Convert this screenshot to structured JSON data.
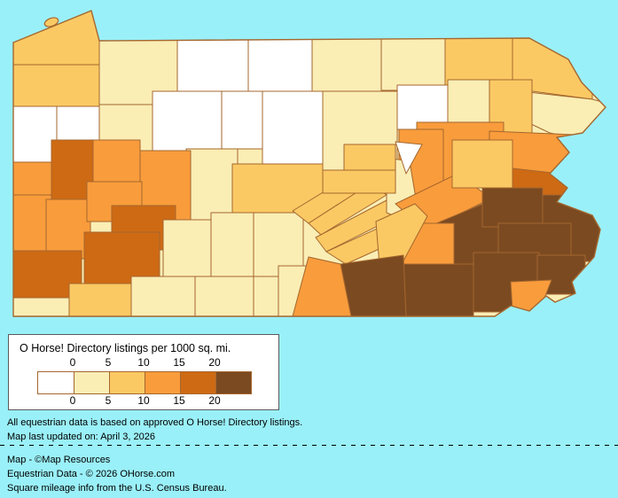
{
  "map": {
    "region": "Pennsylvania county choropleth",
    "background_color": "#9af0f8",
    "county_border_color": "#a5672e",
    "counties": [
      {
        "id": "warren",
        "bucket": 1
      },
      {
        "id": "mckean",
        "bucket": 0
      },
      {
        "id": "potter",
        "bucket": 0
      },
      {
        "id": "tioga",
        "bucket": 1
      },
      {
        "id": "bradford",
        "bucket": 1
      },
      {
        "id": "susquehanna",
        "bucket": 2
      },
      {
        "id": "wayne",
        "bucket": 2
      },
      {
        "id": "pike",
        "bucket": 1
      },
      {
        "id": "lackawanna",
        "bucket": 2
      },
      {
        "id": "wyoming",
        "bucket": 1
      },
      {
        "id": "sullivan",
        "bucket": 0
      },
      {
        "id": "erie",
        "bucket": 2
      },
      {
        "id": "crawford",
        "bucket": 2
      },
      {
        "id": "mercer",
        "bucket": 0
      },
      {
        "id": "venango",
        "bucket": 0
      },
      {
        "id": "forest",
        "bucket": 1
      },
      {
        "id": "elk",
        "bucket": 0
      },
      {
        "id": "cameron",
        "bucket": 0
      },
      {
        "id": "clinton",
        "bucket": 0
      },
      {
        "id": "lycoming",
        "bucket": 1
      },
      {
        "id": "clearfield",
        "bucket": 1
      },
      {
        "id": "centre",
        "bucket": 2
      },
      {
        "id": "jefferson",
        "bucket": 3
      },
      {
        "id": "clarion",
        "bucket": 3
      },
      {
        "id": "butler",
        "bucket": 4
      },
      {
        "id": "lawrence",
        "bucket": 3
      },
      {
        "id": "beaver",
        "bucket": 3
      },
      {
        "id": "allegheny",
        "bucket": 3
      },
      {
        "id": "armstrong",
        "bucket": 3
      },
      {
        "id": "indiana",
        "bucket": 4
      },
      {
        "id": "cambria",
        "bucket": 1
      },
      {
        "id": "blair",
        "bucket": 1
      },
      {
        "id": "huntingdon",
        "bucket": 1
      },
      {
        "id": "westmoreland",
        "bucket": 4
      },
      {
        "id": "washington",
        "bucket": 4
      },
      {
        "id": "greene",
        "bucket": 1
      },
      {
        "id": "fayette",
        "bucket": 2
      },
      {
        "id": "somerset",
        "bucket": 1
      },
      {
        "id": "bedford",
        "bucket": 1
      },
      {
        "id": "fulton",
        "bucket": 1
      },
      {
        "id": "franklin",
        "bucket": 1
      },
      {
        "id": "mifflin",
        "bucket": 2
      },
      {
        "id": "juniata",
        "bucket": 2
      },
      {
        "id": "perry",
        "bucket": 2
      },
      {
        "id": "cumberland",
        "bucket": 2
      },
      {
        "id": "luzerne",
        "bucket": 3
      },
      {
        "id": "columbia",
        "bucket": 3
      },
      {
        "id": "northumberland",
        "bucket": 1
      },
      {
        "id": "montour",
        "bucket": 0
      },
      {
        "id": "union",
        "bucket": 2
      },
      {
        "id": "snyder",
        "bucket": 2
      },
      {
        "id": "schuylkill",
        "bucket": 3
      },
      {
        "id": "berks",
        "bucket": 5
      },
      {
        "id": "lebanon",
        "bucket": 3
      },
      {
        "id": "dauphin",
        "bucket": 2
      },
      {
        "id": "lancaster",
        "bucket": 5
      },
      {
        "id": "york",
        "bucket": 5
      },
      {
        "id": "adams",
        "bucket": 3
      },
      {
        "id": "monroe",
        "bucket": 3
      },
      {
        "id": "carbon",
        "bucket": 2
      },
      {
        "id": "northampton",
        "bucket": 4
      },
      {
        "id": "lehigh",
        "bucket": 5
      },
      {
        "id": "bucks",
        "bucket": 5
      },
      {
        "id": "montgomery",
        "bucket": 5
      },
      {
        "id": "chester",
        "bucket": 5
      },
      {
        "id": "philadelphia",
        "bucket": 5
      },
      {
        "id": "delaware",
        "bucket": 3
      }
    ]
  },
  "legend": {
    "title": "O Horse! Directory listings per 1000 sq. mi.",
    "ticks": [
      "0",
      "5",
      "10",
      "15",
      "20"
    ],
    "palette": [
      "#ffffff",
      "#faeeb5",
      "#fbc964",
      "#f99c3c",
      "#ce6a14",
      "#7b4a21"
    ]
  },
  "notes": {
    "line1": "All equestrian data is based on approved O Horse! Directory listings.",
    "line2": "Map last updated on: April 3, 2026"
  },
  "credits": {
    "line1": "Map - ©Map Resources",
    "line2": "Equestrian Data - © 2026 OHorse.com",
    "line3": "Square mileage info from the U.S. Census Bureau."
  }
}
